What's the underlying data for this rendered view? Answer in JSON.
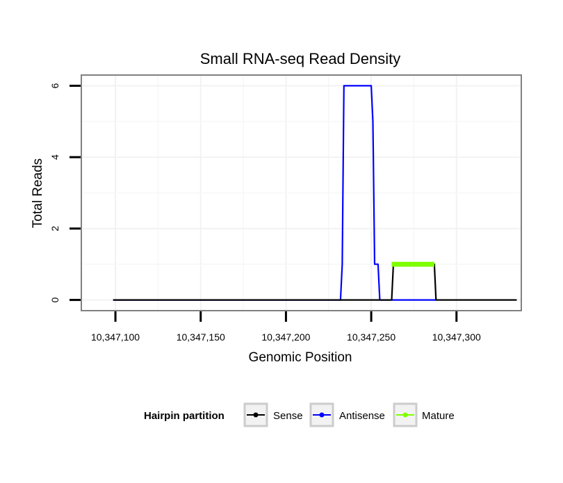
{
  "chart_data": {
    "type": "line",
    "title": "Small RNA-seq Read Density",
    "xlabel": "Genomic Position",
    "ylabel": "Total Reads",
    "xlim": [
      10347080,
      10347338
    ],
    "ylim": [
      -0.3,
      6.3
    ],
    "x_ticks": [
      10347100,
      10347150,
      10347200,
      10347250,
      10347300
    ],
    "x_tick_labels": [
      "10,347,100",
      "10,347,150",
      "10,347,200",
      "10,347,250",
      "10,347,300"
    ],
    "y_ticks": [
      0,
      2,
      4,
      6
    ],
    "y_tick_labels": [
      "0",
      "2",
      "4",
      "6"
    ],
    "grid": true,
    "legend": {
      "title": "Hairpin partition",
      "position": "bottom"
    },
    "series": [
      {
        "name": "Sense",
        "color": "#000000",
        "x": [
          10347099,
          10347262,
          10347263,
          10347287,
          10347288,
          10347335
        ],
        "y": [
          0,
          0,
          1,
          1,
          0,
          0
        ]
      },
      {
        "name": "Antisense",
        "color": "#0000ff",
        "x": [
          10347099,
          10347232,
          10347233,
          10347234,
          10347250,
          10347251,
          10347252,
          10347253,
          10347254,
          10347255,
          10347288
        ],
        "y": [
          0,
          0,
          1,
          6,
          6,
          5,
          1,
          1,
          1,
          0,
          0
        ]
      },
      {
        "name": "Mature",
        "color": "#7fff00",
        "x": [
          10347262,
          10347287
        ],
        "y": [
          1,
          1
        ]
      }
    ]
  }
}
